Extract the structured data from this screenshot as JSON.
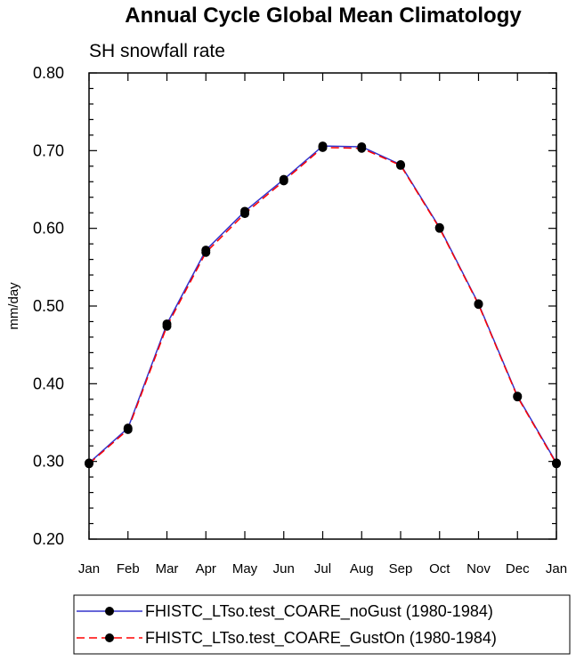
{
  "chart_data": {
    "type": "line",
    "title": "Annual Cycle Global Mean Climatology",
    "subtitle": "SH snowfall rate",
    "xlabel": "",
    "ylabel": "mm/day",
    "ylim": [
      0.2,
      0.8
    ],
    "yticks": [
      "0.20",
      "0.30",
      "0.40",
      "0.50",
      "0.60",
      "0.70",
      "0.80"
    ],
    "categories": [
      "Jan",
      "Feb",
      "Mar",
      "Apr",
      "May",
      "Jun",
      "Jul",
      "Aug",
      "Sep",
      "Oct",
      "Nov",
      "Dec",
      "Jan"
    ],
    "series": [
      {
        "name": "FHISTC_LTso.test_COARE_noGust (1980-1984)",
        "color": "#3333cc",
        "dash": "solid",
        "values": [
          0.298,
          0.343,
          0.477,
          0.572,
          0.622,
          0.663,
          0.706,
          0.705,
          0.682,
          0.601,
          0.503,
          0.384,
          0.298
        ]
      },
      {
        "name": "FHISTC_LTso.test_COARE_GustOn (1980-1984)",
        "color": "#ff0000",
        "dash": "dashed",
        "values": [
          0.297,
          0.341,
          0.474,
          0.569,
          0.619,
          0.661,
          0.704,
          0.703,
          0.681,
          0.6,
          0.502,
          0.383,
          0.297
        ]
      }
    ]
  }
}
